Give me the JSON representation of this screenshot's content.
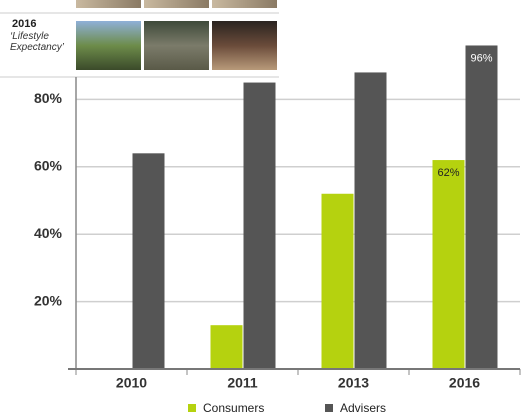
{
  "inset": {
    "year": "2016",
    "caption": "‘Lifestyle Expectancy’"
  },
  "chart_data": {
    "type": "bar",
    "categories": [
      "2010",
      "2011",
      "2013",
      "2016"
    ],
    "series": [
      {
        "name": "Consumers",
        "color": "#b5d20f",
        "values": [
          null,
          13,
          52,
          62
        ],
        "value_labels": [
          null,
          null,
          null,
          "62%"
        ]
      },
      {
        "name": "Advisers",
        "color": "#555555",
        "values": [
          64,
          85,
          88,
          96
        ],
        "value_labels": [
          null,
          null,
          null,
          "96%"
        ]
      }
    ],
    "ylim": [
      0,
      100
    ],
    "yticks": [
      {
        "value": 20,
        "label": "20%"
      },
      {
        "value": 40,
        "label": "40%"
      },
      {
        "value": 60,
        "label": "60%"
      },
      {
        "value": 80,
        "label": "80%"
      }
    ],
    "grid": true,
    "legend": "bottom"
  }
}
